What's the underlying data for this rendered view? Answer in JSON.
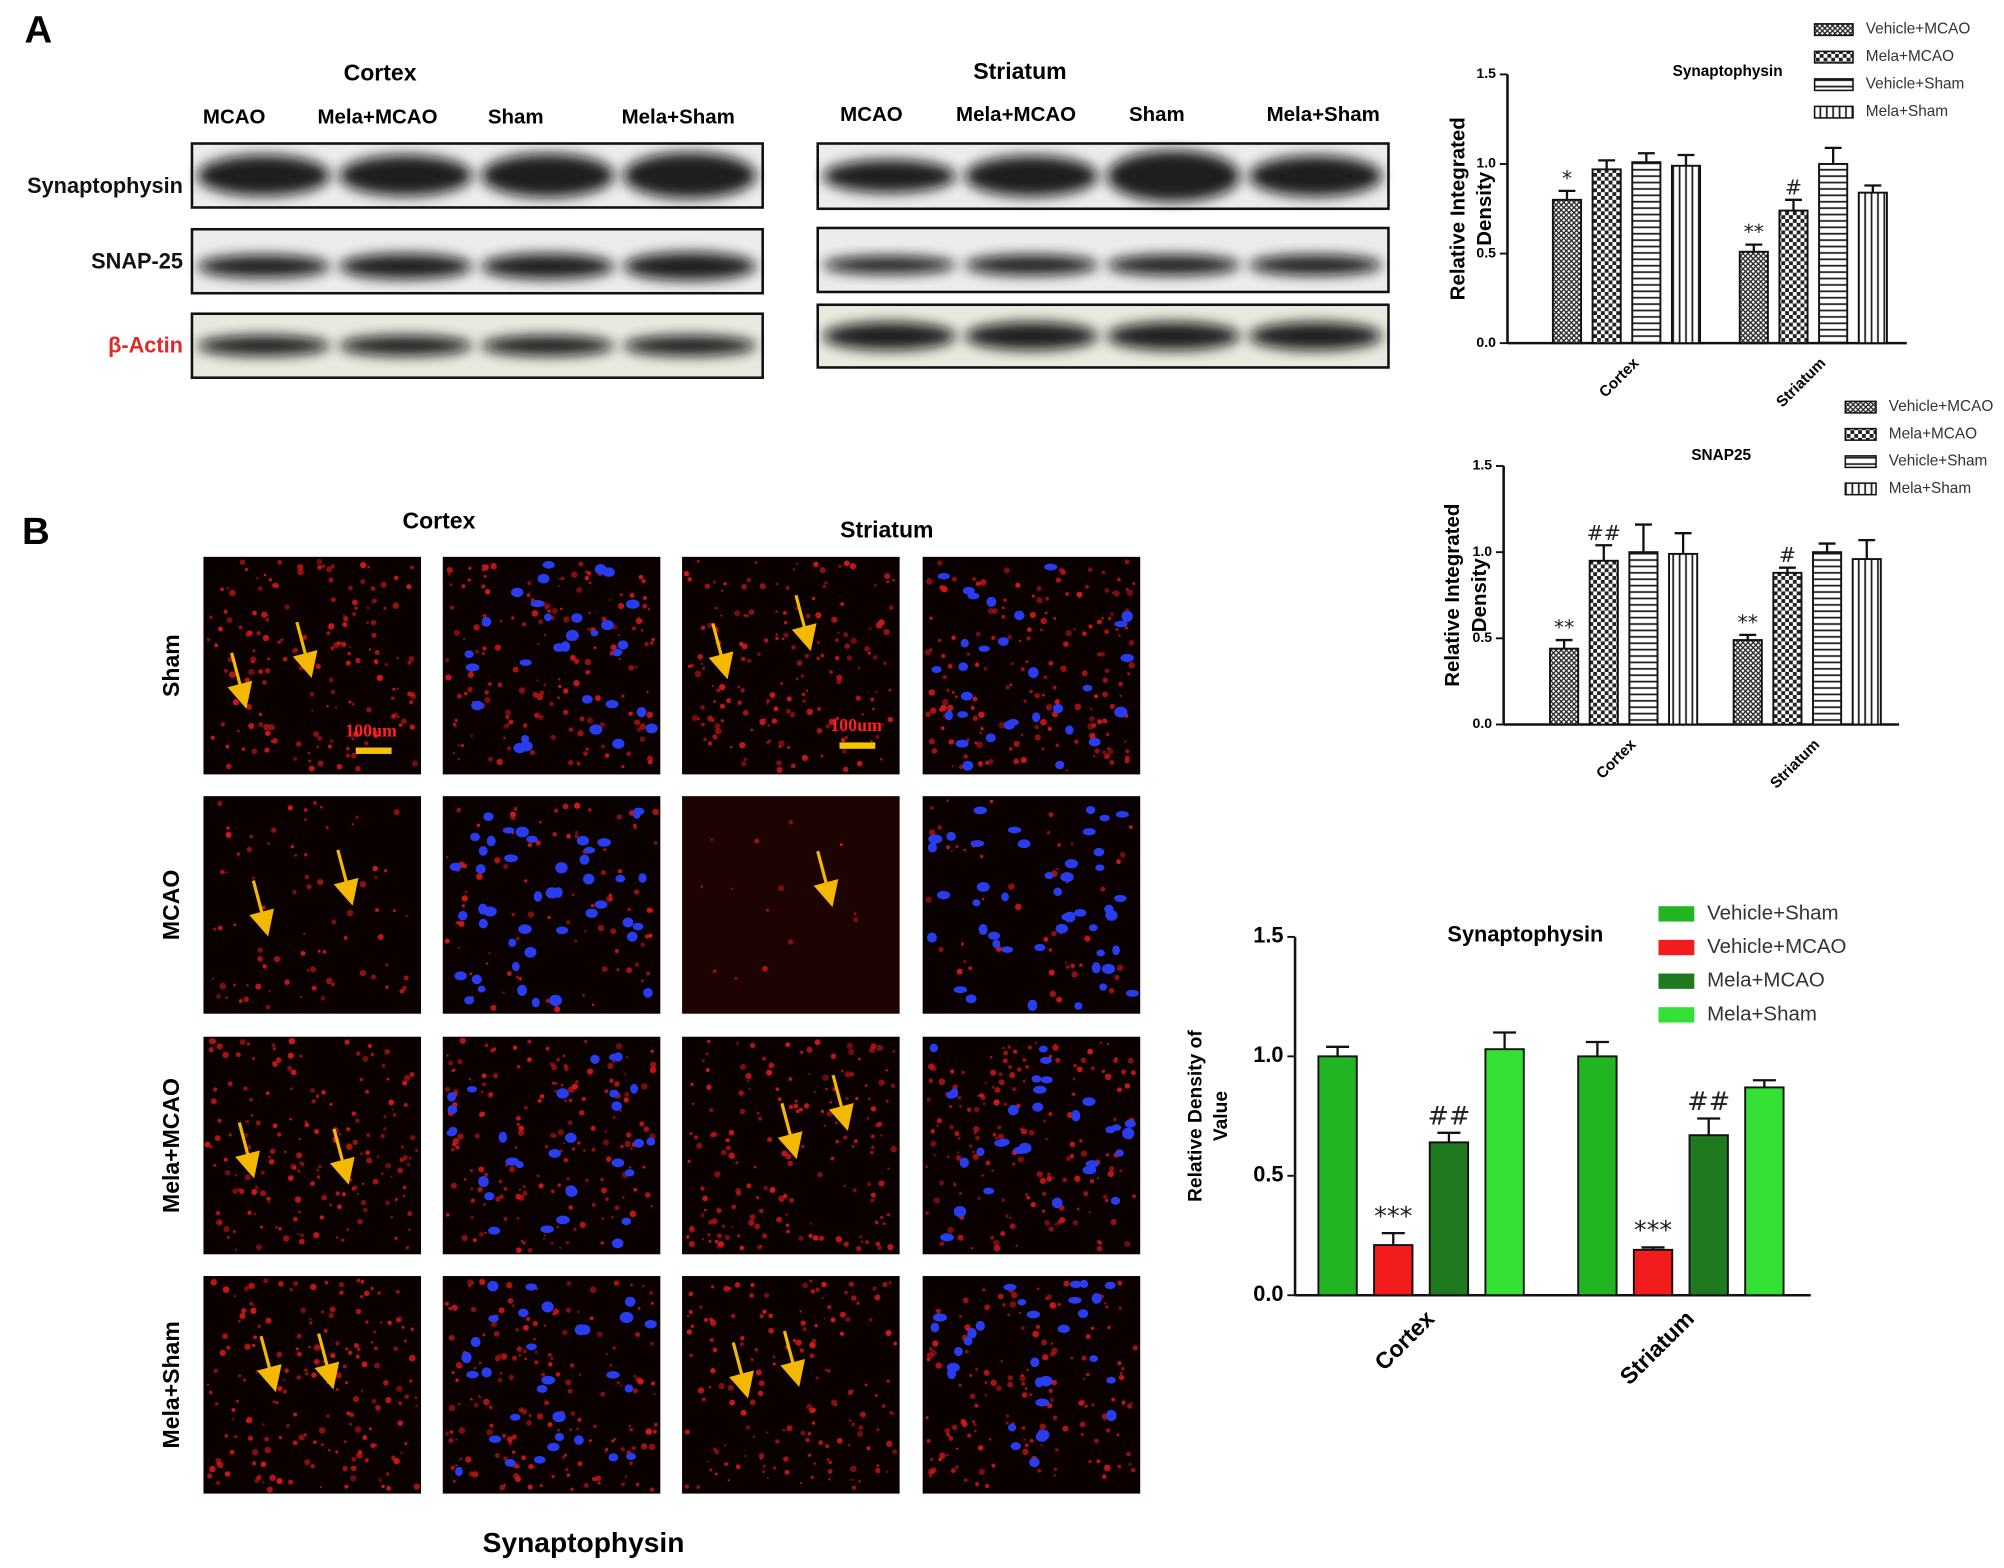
{
  "panel_a": {
    "label": "A",
    "rows": [
      "Synaptophysin",
      "SNAP-25",
      "β-Actin"
    ],
    "row_label_colors": [
      "#111111",
      "#111111",
      "#e02828"
    ],
    "blots": [
      {
        "region": "Cortex",
        "lanes": [
          "MCAO",
          "Mela+MCAO",
          "Sham",
          "Mela+Sham"
        ]
      },
      {
        "region": "Striatum",
        "lanes": [
          "MCAO",
          "Mela+MCAO",
          "Sham",
          "Mela+Sham"
        ]
      }
    ]
  },
  "panel_b": {
    "label": "B",
    "regions": [
      "Cortex",
      "Striatum"
    ],
    "groups": [
      "Sham",
      "MCAO",
      "Mela+MCAO",
      "Mela+Sham"
    ],
    "scale_bar": "100um",
    "caption": "Synaptophysin"
  },
  "chart_data": [
    {
      "type": "bar",
      "title": "Synaptophysin",
      "y_label": [
        "Relative Integrated",
        "Density"
      ],
      "categories": [
        "Cortex",
        "Striatum"
      ],
      "series": [
        {
          "name": "Vehicle+MCAO",
          "pattern": "crosshatch",
          "values": [
            0.8,
            0.51
          ],
          "errors": [
            0.05,
            0.04
          ],
          "annotations": [
            "*",
            "**"
          ]
        },
        {
          "name": "Mela+MCAO",
          "pattern": "checker",
          "values": [
            0.97,
            0.74
          ],
          "errors": [
            0.05,
            0.06
          ],
          "annotations": [
            null,
            "#"
          ]
        },
        {
          "name": "Vehicle+Sham",
          "pattern": "horizontal",
          "values": [
            1.01,
            1.0
          ],
          "errors": [
            0.05,
            0.09
          ]
        },
        {
          "name": "Mela+Sham",
          "pattern": "vertical",
          "values": [
            0.99,
            0.84
          ],
          "errors": [
            0.06,
            0.04
          ]
        }
      ],
      "ylim": [
        0,
        1.5
      ],
      "yticks": [
        {
          "value": 0,
          "label": "0.0"
        },
        0.5,
        {
          "value": 1,
          "label": "1.0"
        },
        1.5
      ]
    },
    {
      "type": "bar",
      "title": "SNAP25",
      "y_label": [
        "Relative Integrated",
        "Density"
      ],
      "categories": [
        "Cortex",
        "Striatum"
      ],
      "series": [
        {
          "name": "Vehicle+MCAO",
          "pattern": "crosshatch",
          "values": [
            0.44,
            0.49
          ],
          "errors": [
            0.05,
            0.03
          ],
          "annotations": [
            "**",
            "**"
          ]
        },
        {
          "name": "Mela+MCAO",
          "pattern": "checker",
          "values": [
            0.95,
            0.88
          ],
          "errors": [
            0.09,
            0.03
          ],
          "annotations": [
            "##",
            "#"
          ]
        },
        {
          "name": "Vehicle+Sham",
          "pattern": "horizontal",
          "values": [
            1.0,
            1.0
          ],
          "errors": [
            0.16,
            0.05
          ]
        },
        {
          "name": "Mela+Sham",
          "pattern": "vertical",
          "values": [
            0.99,
            0.96
          ],
          "errors": [
            0.12,
            0.11
          ]
        }
      ],
      "ylim": [
        0,
        1.5
      ],
      "yticks": [
        {
          "value": 0,
          "label": "0.0"
        },
        0.5,
        {
          "value": 1,
          "label": "1.0"
        },
        1.5
      ]
    },
    {
      "type": "bar",
      "title": "Synaptophysin",
      "y_label": [
        "Relative Density of",
        "Value"
      ],
      "categories": [
        "Cortex",
        "Striatum"
      ],
      "series": [
        {
          "name": "Vehicle+Sham",
          "color": "#22b522",
          "values": [
            1.0,
            1.0
          ],
          "errors": [
            0.04,
            0.06
          ]
        },
        {
          "name": "Vehicle+MCAO",
          "color": "#f21c1c",
          "values": [
            0.21,
            0.19
          ],
          "errors": [
            0.05,
            0.01
          ],
          "annotations": [
            "***",
            "***"
          ]
        },
        {
          "name": "Mela+MCAO",
          "color": "#1f7a1f",
          "values": [
            0.64,
            0.67
          ],
          "errors": [
            0.04,
            0.07
          ],
          "annotations": [
            "##",
            "##"
          ]
        },
        {
          "name": "Mela+Sham",
          "color": "#35e035",
          "values": [
            1.03,
            0.87
          ],
          "errors": [
            0.07,
            0.03
          ]
        }
      ],
      "ylim": [
        0,
        1.5
      ],
      "yticks": [
        {
          "value": 0,
          "label": "0.0"
        },
        0.5,
        {
          "value": 1,
          "label": "1.0"
        },
        1.5
      ]
    }
  ]
}
